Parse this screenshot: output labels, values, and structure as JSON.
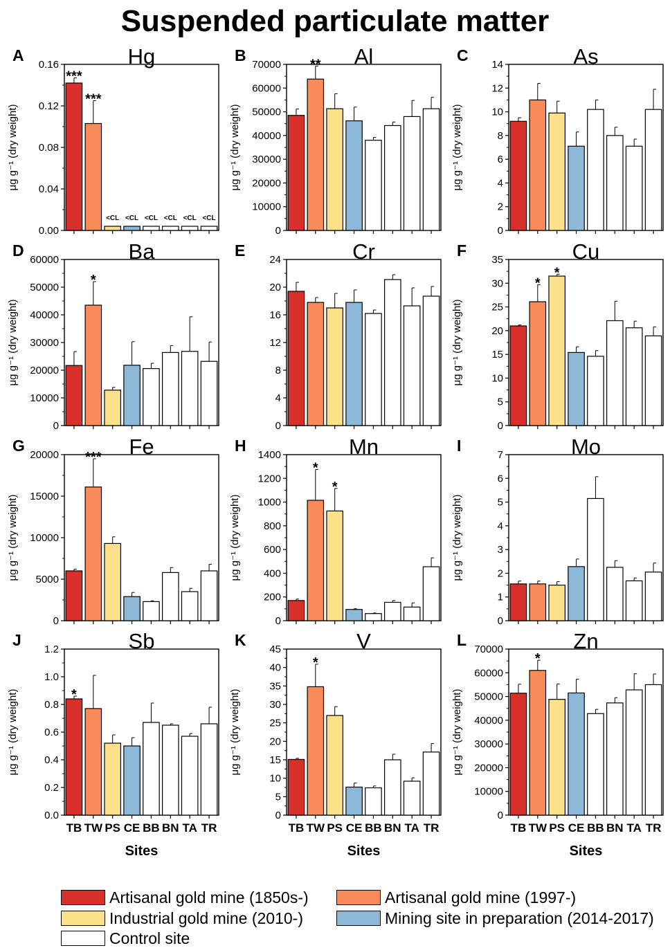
{
  "title": "Suspended particulate matter",
  "colors": {
    "TB": "#d7302a",
    "TW": "#f98b58",
    "PS": "#fde08a",
    "CE": "#8db9d9",
    "control": "#ffffff"
  },
  "legend": [
    {
      "label": "Artisanal gold mine (1850s-)",
      "color": "#d7302a"
    },
    {
      "label": "Artisanal gold mine (1997-)",
      "color": "#f98b58"
    },
    {
      "label": "Industrial gold mine (2010-)",
      "color": "#fde08a"
    },
    {
      "label": "Mining site in preparation (2014-2017)",
      "color": "#8db9d9"
    },
    {
      "label": "Control site",
      "color": "#ffffff"
    }
  ],
  "chart_data": [
    {
      "type": "bar",
      "panel": "A",
      "title": "Hg",
      "ylabel": "μg g⁻¹ (dry weight)",
      "xlabel": "",
      "categories": [
        "TB",
        "TW",
        "PS",
        "CE",
        "BB",
        "BN",
        "TA",
        "TR"
      ],
      "values": [
        0.142,
        0.103,
        0.004,
        0.004,
        0.004,
        0.004,
        0.004,
        0.004
      ],
      "errors": [
        0.005,
        0.022,
        0,
        0,
        0,
        0,
        0,
        0
      ],
      "ylim": [
        0,
        0.16
      ],
      "yticks": [
        "0.00",
        "0.04",
        "0.08",
        "0.12",
        "0.16"
      ],
      "annotations": [
        "***",
        "***",
        "<CL",
        "<CL",
        "<CL",
        "<CL",
        "<CL",
        "<CL"
      ]
    },
    {
      "type": "bar",
      "panel": "B",
      "title": "Al",
      "ylabel": "μg g⁻¹ (dry weight)",
      "xlabel": "",
      "categories": [
        "TB",
        "TW",
        "PS",
        "CE",
        "BB",
        "BN",
        "TA",
        "TR"
      ],
      "values": [
        48500,
        63800,
        51300,
        46200,
        38000,
        44200,
        48000,
        51300
      ],
      "errors": [
        2700,
        5500,
        6300,
        5800,
        1200,
        1500,
        6800,
        4800
      ],
      "ylim": [
        0,
        70000
      ],
      "yticks": [
        "0",
        "10000",
        "20000",
        "30000",
        "40000",
        "50000",
        "60000",
        "70000"
      ],
      "annotations": [
        "",
        "**",
        "",
        "",
        "",
        "",
        "",
        ""
      ]
    },
    {
      "type": "bar",
      "panel": "C",
      "title": "As",
      "ylabel": "μg g⁻¹ (dry weight)",
      "xlabel": "",
      "categories": [
        "TB",
        "TW",
        "PS",
        "CE",
        "BB",
        "BN",
        "TA",
        "TR"
      ],
      "values": [
        9.2,
        11.0,
        9.9,
        7.1,
        10.2,
        8.0,
        7.1,
        10.2
      ],
      "errors": [
        0.3,
        1.4,
        1.0,
        1.2,
        0.8,
        0.7,
        0.6,
        1.7
      ],
      "ylim": [
        0,
        14
      ],
      "yticks": [
        "0",
        "2",
        "4",
        "6",
        "8",
        "10",
        "12",
        "14"
      ],
      "annotations": [
        "",
        "",
        "",
        "",
        "",
        "",
        "",
        ""
      ]
    },
    {
      "type": "bar",
      "panel": "D",
      "title": "Ba",
      "ylabel": "μg g⁻¹ (dry weight)",
      "xlabel": "",
      "categories": [
        "TB",
        "TW",
        "PS",
        "CE",
        "BB",
        "BN",
        "TA",
        "TR"
      ],
      "values": [
        21700,
        43500,
        12800,
        21800,
        20600,
        26400,
        26800,
        23200
      ],
      "errors": [
        5000,
        8500,
        1000,
        8500,
        1900,
        2500,
        12500,
        7000
      ],
      "ylim": [
        0,
        60000
      ],
      "yticks": [
        "0",
        "10000",
        "20000",
        "30000",
        "40000",
        "50000",
        "60000"
      ],
      "annotations": [
        "",
        "*",
        "",
        "",
        "",
        "",
        "",
        ""
      ]
    },
    {
      "type": "bar",
      "panel": "E",
      "title": "Cr",
      "ylabel": "",
      "xlabel": "",
      "categories": [
        "TB",
        "TW",
        "PS",
        "CE",
        "BB",
        "BN",
        "TA",
        "TR"
      ],
      "values": [
        19.4,
        17.8,
        17.0,
        17.8,
        16.2,
        21.1,
        17.3,
        18.7
      ],
      "errors": [
        1.3,
        0.7,
        2.1,
        1.8,
        0.5,
        0.7,
        2.6,
        1.4
      ],
      "ylim": [
        0,
        24
      ],
      "yticks": [
        "0",
        "4",
        "8",
        "12",
        "16",
        "20",
        "24"
      ],
      "annotations": [
        "",
        "",
        "",
        "",
        "",
        "",
        "",
        ""
      ]
    },
    {
      "type": "bar",
      "panel": "F",
      "title": "Cu",
      "ylabel": "μg g⁻¹ (dry weight)",
      "xlabel": "",
      "categories": [
        "TB",
        "TW",
        "PS",
        "CE",
        "BB",
        "BN",
        "TA",
        "TR"
      ],
      "values": [
        21.0,
        26.1,
        31.5,
        15.4,
        14.6,
        22.1,
        20.6,
        18.9
      ],
      "errors": [
        0.2,
        3.6,
        0.4,
        1.2,
        1.2,
        4.1,
        1.4,
        1.9
      ],
      "ylim": [
        0,
        35
      ],
      "yticks": [
        "0",
        "5",
        "10",
        "15",
        "20",
        "25",
        "30",
        "35"
      ],
      "annotations": [
        "",
        "*",
        "*",
        "",
        "",
        "",
        "",
        ""
      ]
    },
    {
      "type": "bar",
      "panel": "G",
      "title": "Fe",
      "ylabel": "μg g⁻¹ (dry weight)",
      "xlabel": "",
      "categories": [
        "TB",
        "TW",
        "PS",
        "CE",
        "BB",
        "BN",
        "TA",
        "TR"
      ],
      "values": [
        6000,
        16100,
        9300,
        2900,
        2300,
        5800,
        3500,
        6000
      ],
      "errors": [
        200,
        3400,
        800,
        500,
        100,
        600,
        400,
        800
      ],
      "ylim": [
        0,
        20000
      ],
      "yticks": [
        "0",
        "5000",
        "10000",
        "15000",
        "20000"
      ],
      "annotations": [
        "",
        "***",
        "",
        "",
        "",
        "",
        "",
        ""
      ]
    },
    {
      "type": "bar",
      "panel": "H",
      "title": "Mn",
      "ylabel": "μg g⁻¹ (dry weight)",
      "xlabel": "",
      "categories": [
        "TB",
        "TW",
        "PS",
        "CE",
        "BB",
        "BN",
        "TA",
        "TR"
      ],
      "values": [
        170,
        1015,
        925,
        95,
        60,
        155,
        115,
        455
      ],
      "errors": [
        12,
        260,
        190,
        6,
        5,
        15,
        35,
        75
      ],
      "ylim": [
        0,
        1400
      ],
      "yticks": [
        "0",
        "200",
        "400",
        "600",
        "800",
        "1000",
        "1200",
        "1400"
      ],
      "annotations": [
        "",
        "*",
        "*",
        "",
        "",
        "",
        "",
        ""
      ]
    },
    {
      "type": "bar",
      "panel": "I",
      "title": "Mo",
      "ylabel": "μg g⁻¹ (dry weight)",
      "xlabel": "",
      "categories": [
        "TB",
        "TW",
        "PS",
        "CE",
        "BB",
        "BN",
        "TA",
        "TR"
      ],
      "values": [
        1.55,
        1.55,
        1.5,
        2.28,
        5.15,
        2.25,
        1.68,
        2.05
      ],
      "errors": [
        0.12,
        0.12,
        0.15,
        0.32,
        0.92,
        0.28,
        0.12,
        0.38
      ],
      "ylim": [
        0,
        7
      ],
      "yticks": [
        "0",
        "1",
        "2",
        "3",
        "4",
        "5",
        "6",
        "7"
      ],
      "annotations": [
        "",
        "",
        "",
        "",
        "",
        "",
        "",
        ""
      ]
    },
    {
      "type": "bar",
      "panel": "J",
      "title": "Sb",
      "ylabel": "μg g⁻¹ (dry weight)",
      "xlabel": "Sites",
      "categories": [
        "TB",
        "TW",
        "PS",
        "CE",
        "BB",
        "BN",
        "TA",
        "TR"
      ],
      "values": [
        0.84,
        0.77,
        0.52,
        0.5,
        0.67,
        0.65,
        0.57,
        0.66
      ],
      "errors": [
        0.02,
        0.24,
        0.06,
        0.06,
        0.14,
        0.01,
        0.02,
        0.12
      ],
      "ylim": [
        0,
        1.2
      ],
      "yticks": [
        "0.0",
        "0.2",
        "0.4",
        "0.6",
        "0.8",
        "1.0",
        "1.2"
      ],
      "annotations": [
        "*",
        "",
        "",
        "",
        "",
        "",
        "",
        ""
      ]
    },
    {
      "type": "bar",
      "panel": "K",
      "title": "V",
      "ylabel": "μg g⁻¹ (dry weight)",
      "xlabel": "Sites",
      "categories": [
        "TB",
        "TW",
        "PS",
        "CE",
        "BB",
        "BN",
        "TA",
        "TR"
      ],
      "values": [
        15.1,
        34.8,
        27.0,
        7.6,
        7.4,
        15.0,
        9.2,
        17.1
      ],
      "errors": [
        0.3,
        6.1,
        2.4,
        1.1,
        0.5,
        1.5,
        0.9,
        2.3
      ],
      "ylim": [
        0,
        45
      ],
      "yticks": [
        "0",
        "5",
        "10",
        "15",
        "20",
        "25",
        "30",
        "35",
        "40",
        "45"
      ],
      "annotations": [
        "",
        "*",
        "",
        "",
        "",
        "",
        "",
        ""
      ]
    },
    {
      "type": "bar",
      "panel": "L",
      "title": "Zn",
      "ylabel": "μg g⁻¹ (dry weight)",
      "xlabel": "Sites",
      "categories": [
        "TB",
        "TW",
        "PS",
        "CE",
        "BB",
        "BN",
        "TA",
        "TR"
      ],
      "values": [
        51400,
        61000,
        48800,
        51500,
        42800,
        47300,
        52800,
        55000
      ],
      "errors": [
        3800,
        4300,
        6500,
        5800,
        1800,
        2200,
        6800,
        4500
      ],
      "ylim": [
        0,
        70000
      ],
      "yticks": [
        "0",
        "10000",
        "20000",
        "30000",
        "40000",
        "50000",
        "60000",
        "70000"
      ],
      "annotations": [
        "",
        "*",
        "",
        "",
        "",
        "",
        "",
        ""
      ]
    }
  ]
}
